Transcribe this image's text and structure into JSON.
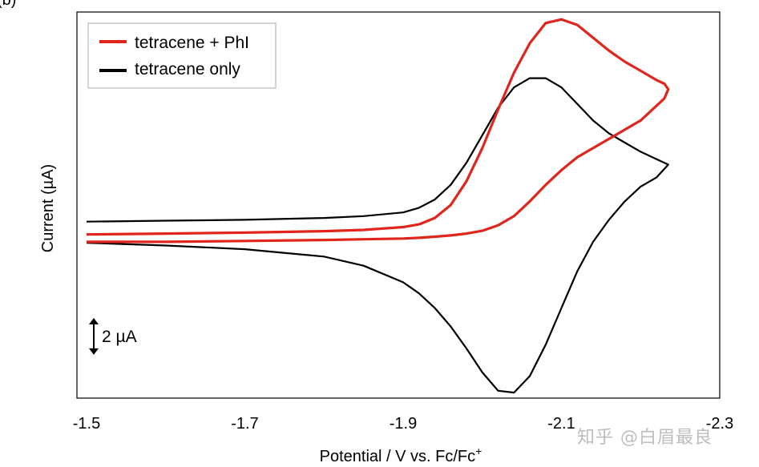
{
  "figure": {
    "panel_label": "(b)"
  },
  "watermark": "知乎 @白眉最良",
  "chart_data": {
    "type": "line",
    "title": "",
    "xlabel": "Potential / V vs. Fc/Fc",
    "xlabel_superscript": "+",
    "ylabel": "Current (µA)",
    "xlim": [
      -1.5,
      -2.3
    ],
    "x_ticks": [
      -1.5,
      -1.7,
      -1.9,
      -2.1,
      -2.3
    ],
    "x_tick_labels": [
      "-1.5",
      "-1.7",
      "-1.9",
      "-2.1",
      "-2.3"
    ],
    "y_units": "µA",
    "ylim": [
      -8.5,
      12.5
    ],
    "y_ticks_shown": false,
    "grid": false,
    "legend_position": "top-left",
    "scale_bar": {
      "label": "2 µA",
      "value": 2
    },
    "series": [
      {
        "name": "tetracene + PhI",
        "color": "#e0261c",
        "x": [
          -1.5,
          -1.6,
          -1.7,
          -1.8,
          -1.85,
          -1.9,
          -1.92,
          -1.94,
          -1.96,
          -1.98,
          -2.0,
          -2.02,
          -2.04,
          -2.06,
          -2.08,
          -2.1,
          -2.12,
          -2.14,
          -2.16,
          -2.18,
          -2.2,
          -2.22,
          -2.23,
          -2.235,
          -2.23,
          -2.2,
          -2.16,
          -2.12,
          -2.1,
          -2.08,
          -2.06,
          -2.04,
          -2.02,
          -2.0,
          -1.98,
          -1.96,
          -1.94,
          -1.92,
          -1.9,
          -1.85,
          -1.8,
          -1.7,
          -1.6,
          -1.5
        ],
        "y": [
          0.4,
          0.45,
          0.5,
          0.58,
          0.65,
          0.8,
          0.95,
          1.3,
          2.0,
          3.3,
          5.1,
          7.2,
          9.2,
          10.8,
          11.9,
          12.1,
          11.8,
          11.1,
          10.4,
          9.8,
          9.3,
          8.8,
          8.6,
          8.3,
          7.8,
          6.6,
          5.6,
          4.6,
          3.9,
          3.1,
          2.2,
          1.4,
          0.9,
          0.6,
          0.45,
          0.35,
          0.28,
          0.22,
          0.18,
          0.14,
          0.1,
          0.05,
          0.0,
          0.0
        ]
      },
      {
        "name": "tetracene only",
        "color": "#000000",
        "x": [
          -1.5,
          -1.6,
          -1.7,
          -1.8,
          -1.85,
          -1.9,
          -1.92,
          -1.94,
          -1.96,
          -1.98,
          -2.0,
          -2.02,
          -2.04,
          -2.06,
          -2.08,
          -2.1,
          -2.12,
          -2.14,
          -2.16,
          -2.18,
          -2.2,
          -2.22,
          -2.235,
          -2.22,
          -2.2,
          -2.18,
          -2.16,
          -2.14,
          -2.12,
          -2.1,
          -2.08,
          -2.06,
          -2.04,
          -2.02,
          -2.0,
          -1.98,
          -1.96,
          -1.94,
          -1.92,
          -1.9,
          -1.85,
          -1.8,
          -1.7,
          -1.6,
          -1.5
        ],
        "y": [
          1.1,
          1.15,
          1.2,
          1.3,
          1.4,
          1.6,
          1.85,
          2.3,
          3.1,
          4.3,
          5.8,
          7.3,
          8.4,
          8.9,
          8.9,
          8.4,
          7.5,
          6.6,
          5.9,
          5.4,
          4.9,
          4.5,
          4.2,
          3.5,
          3.0,
          2.2,
          1.2,
          0.0,
          -1.6,
          -3.6,
          -5.6,
          -7.3,
          -8.2,
          -8.1,
          -7.1,
          -5.8,
          -4.6,
          -3.6,
          -2.8,
          -2.2,
          -1.3,
          -0.8,
          -0.4,
          -0.2,
          -0.05
        ]
      }
    ]
  }
}
